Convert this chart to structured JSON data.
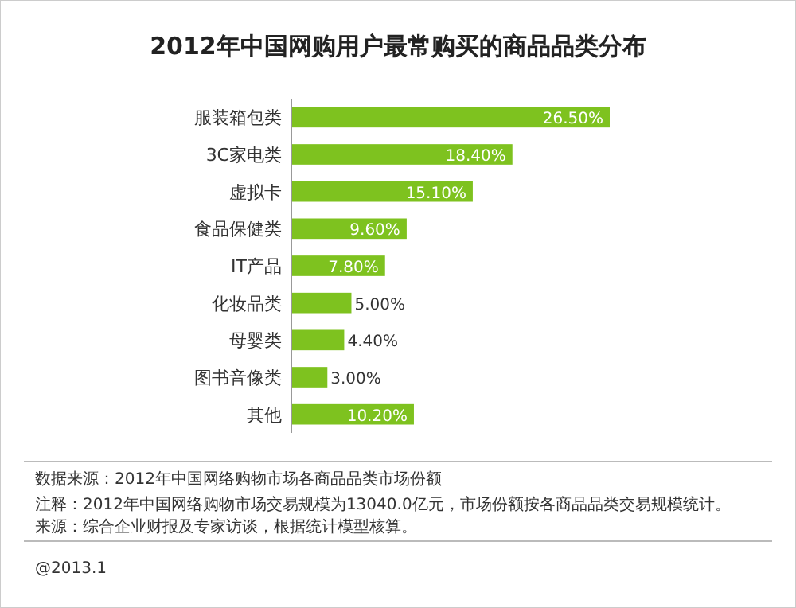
{
  "chart_data": {
    "type": "bar",
    "orientation": "horizontal",
    "title": "2012年中国网购用户最常购买的商品品类分布",
    "categories": [
      "服装箱包类",
      "3C家电类",
      "虚拟卡",
      "食品保健类",
      "IT产品",
      "化妆品类",
      "母婴类",
      "图书音像类",
      "其他"
    ],
    "values": [
      26.5,
      18.4,
      15.1,
      9.6,
      7.8,
      5.0,
      4.4,
      3.0,
      10.2
    ],
    "value_labels": [
      "26.50%",
      "18.40%",
      "15.10%",
      "9.60%",
      "7.80%",
      "5.00%",
      "4.40%",
      "3.00%",
      "10.20%"
    ],
    "color": "#7ec21f",
    "tick_labels": "y",
    "annotations": [
      "数据来源：2012年中国网络购物市场各商品品类市场份额",
      "注释：2012年中国网络购物市场交易规模为13040.0亿元，市场份额按各商品品类交易规模统计。",
      "来源：综合企业财报及专家访谈，根据统计模型核算。",
      "@2013.1"
    ]
  }
}
